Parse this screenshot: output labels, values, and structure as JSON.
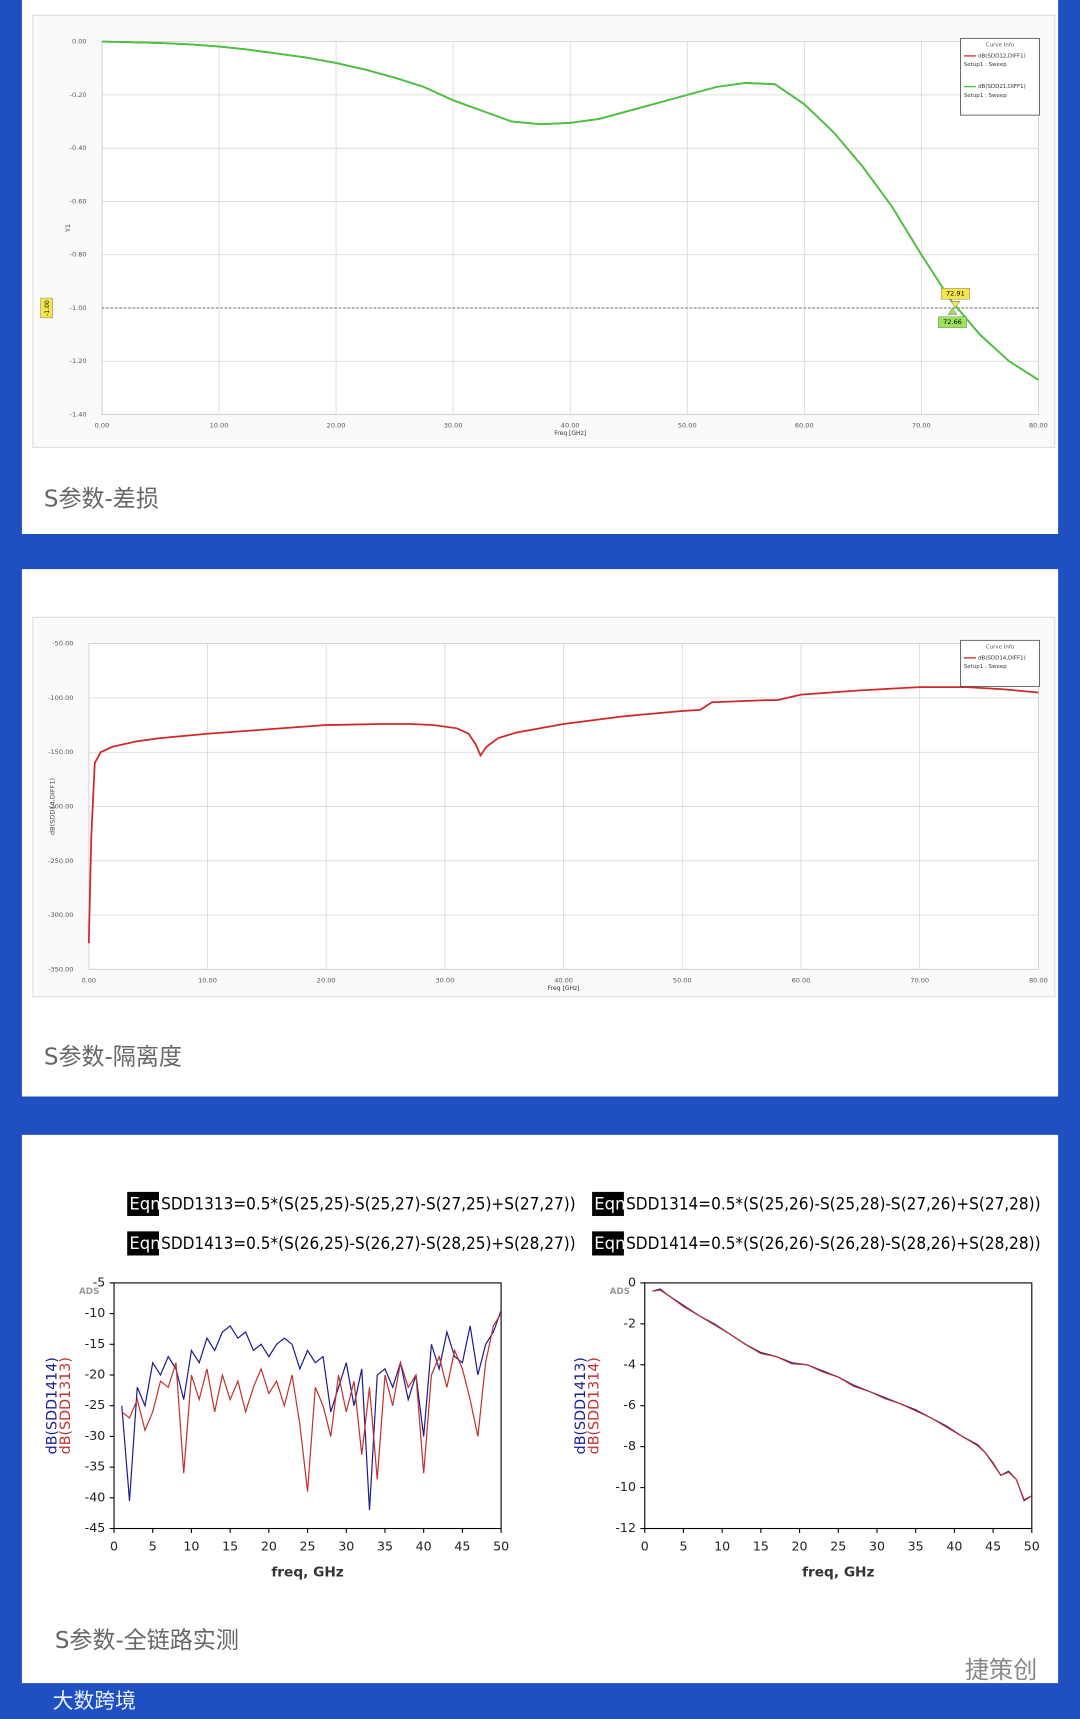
{
  "chart_data": [
    {
      "type": "line",
      "x_label": "Freq [GHz]",
      "y_label": "Y1",
      "legend_title": "Curve Info",
      "grid": true,
      "xlim": [
        0,
        80
      ],
      "ylim": [
        -1.4,
        0
      ],
      "xticks": [
        {
          "value": 0,
          "label": "0.00"
        },
        {
          "value": 10,
          "label": "10.00"
        },
        {
          "value": 20,
          "label": "20.00"
        },
        {
          "value": 30,
          "label": "30.00"
        },
        {
          "value": 40,
          "label": "40.00"
        },
        {
          "value": 50,
          "label": "50.00"
        },
        {
          "value": 60,
          "label": "60.00"
        },
        {
          "value": 70,
          "label": "70.00"
        },
        {
          "value": 80,
          "label": "80.00"
        }
      ],
      "yticks": [
        {
          "value": 0,
          "label": "0.00"
        },
        {
          "value": -0.2,
          "label": "-0.20"
        },
        {
          "value": -0.4,
          "label": "-0.40"
        },
        {
          "value": -0.6,
          "label": "-0.60"
        },
        {
          "value": -0.8,
          "label": "-0.80"
        },
        {
          "value": -1,
          "label": "-1.00"
        },
        {
          "value": -1.2,
          "label": "-1.20"
        },
        {
          "value": -1.4,
          "label": "-1.40"
        }
      ],
      "reference_line": {
        "value": -1,
        "label": "-1.00"
      },
      "markers": [
        72.91,
        72.66
      ],
      "x": [
        0,
        2.5,
        5,
        7.5,
        10,
        12.5,
        15,
        17.5,
        20,
        22.5,
        25,
        27.5,
        30,
        32.5,
        35,
        37.5,
        40,
        42.5,
        45,
        47.5,
        50,
        52.5,
        55,
        57.5,
        60,
        62.5,
        65,
        67.5,
        70,
        72.5,
        75,
        77.5,
        80
      ],
      "series": [
        {
          "name": "dB(SDD12,DIFF1)",
          "setup": "Setup1 : Sweep",
          "color": "#d03030",
          "values": [
            0,
            -0.002,
            -0.005,
            -0.01,
            -0.018,
            -0.03,
            -0.045,
            -0.06,
            -0.08,
            -0.105,
            -0.135,
            -0.17,
            -0.22,
            -0.26,
            -0.3,
            -0.31,
            -0.305,
            -0.29,
            -0.26,
            -0.23,
            -0.2,
            -0.17,
            -0.155,
            -0.16,
            -0.235,
            -0.34,
            -0.47,
            -0.62,
            -0.8,
            -0.97,
            -1.1,
            -1.2,
            -1.27
          ]
        },
        {
          "name": "dB(SDD21,DIFF1)",
          "setup": "Setup1 : Sweep",
          "color": "#3fc93f",
          "values": [
            0,
            -0.002,
            -0.005,
            -0.01,
            -0.018,
            -0.03,
            -0.045,
            -0.06,
            -0.08,
            -0.105,
            -0.135,
            -0.17,
            -0.22,
            -0.26,
            -0.3,
            -0.31,
            -0.305,
            -0.29,
            -0.26,
            -0.23,
            -0.2,
            -0.17,
            -0.155,
            -0.16,
            -0.235,
            -0.34,
            -0.47,
            -0.62,
            -0.8,
            -0.97,
            -1.1,
            -1.2,
            -1.27
          ]
        }
      ]
    },
    {
      "type": "line",
      "x_label": "Freq [GHz]",
      "y_label": "dB(SDD14,DIFF1)",
      "legend_title": "Curve Info",
      "grid": true,
      "xlim": [
        0,
        80
      ],
      "ylim": [
        -350,
        -50
      ],
      "xticks": [
        {
          "value": 0,
          "label": "0.00"
        },
        {
          "value": 10,
          "label": "10.00"
        },
        {
          "value": 20,
          "label": "20.00"
        },
        {
          "value": 30,
          "label": "30.00"
        },
        {
          "value": 40,
          "label": "40.00"
        },
        {
          "value": 50,
          "label": "50.00"
        },
        {
          "value": 60,
          "label": "60.00"
        },
        {
          "value": 70,
          "label": "70.00"
        },
        {
          "value": 80,
          "label": "80.00"
        }
      ],
      "yticks": [
        {
          "value": -50,
          "label": "-50.00"
        },
        {
          "value": -100,
          "label": "-100.00"
        },
        {
          "value": -150,
          "label": "-150.00"
        },
        {
          "value": -200,
          "label": "-200.00"
        },
        {
          "value": -250,
          "label": "-250.00"
        },
        {
          "value": -300,
          "label": "-300.00"
        },
        {
          "value": -350,
          "label": "-350.00"
        }
      ],
      "x": [
        0,
        0.2,
        0.5,
        1,
        2,
        4,
        6,
        10,
        15,
        20,
        25,
        27,
        29,
        31,
        32,
        32.6,
        33,
        33.5,
        34.5,
        36,
        40,
        45,
        50,
        51.5,
        52.5,
        55,
        57,
        58,
        60,
        65,
        70,
        74,
        77,
        80
      ],
      "series": [
        {
          "name": "dB(SDD14,DIFF1)",
          "setup": "Setup1 : Sweep",
          "color": "#d02828",
          "values": [
            -326,
            -230,
            -160,
            -150,
            -145,
            -140,
            -137,
            -133,
            -129,
            -125,
            -124,
            -124,
            -125,
            -128,
            -133,
            -143,
            -153,
            -145,
            -137,
            -132,
            -124,
            -117,
            -112,
            -111,
            -104,
            -103,
            -102,
            -102,
            -97,
            -93,
            -90,
            -90,
            -92,
            -95
          ]
        }
      ]
    },
    {
      "type": "line",
      "x_label": "freq, GHz",
      "watermark": "ADS",
      "grid": false,
      "xlim": [
        0,
        50
      ],
      "ylim": [
        -45,
        -5
      ],
      "xticks": [
        0,
        5,
        10,
        15,
        20,
        25,
        30,
        35,
        40,
        45,
        50
      ],
      "yticks": [
        -5,
        -10,
        -15,
        -20,
        -25,
        -30,
        -35,
        -40,
        -45
      ],
      "x": [
        1,
        2,
        3,
        4,
        5,
        6,
        7,
        8,
        9,
        10,
        11,
        12,
        13,
        14,
        15,
        16,
        17,
        18,
        19,
        20,
        21,
        22,
        23,
        24,
        25,
        26,
        27,
        28,
        29,
        30,
        31,
        32,
        33,
        34,
        35,
        36,
        37,
        38,
        39,
        40,
        41,
        42,
        43,
        44,
        45,
        46,
        47,
        48,
        49,
        50
      ],
      "series": [
        {
          "name": "dB(SDD1414)",
          "color": "#1c1c8e",
          "values": [
            -25,
            -40.5,
            -22,
            -25,
            -18,
            -20,
            -17,
            -19,
            -24,
            -16,
            -18,
            -14,
            -16,
            -13,
            -12,
            -14,
            -13,
            -16,
            -15,
            -17,
            -15,
            -14,
            -15,
            -19,
            -16,
            -18,
            -17,
            -26,
            -22,
            -18,
            -25,
            -19,
            -42,
            -20,
            -19,
            -22,
            -18,
            -24,
            -20,
            -30,
            -15,
            -19,
            -13,
            -17,
            -18,
            -12,
            -20,
            -15,
            -13,
            -9.5
          ]
        },
        {
          "name": "dB(SDD1313)",
          "color": "#c23030",
          "values": [
            -26,
            -27,
            -24,
            -29,
            -26,
            -21,
            -22,
            -18,
            -36,
            -20,
            -24,
            -19,
            -26,
            -20,
            -24,
            -21,
            -26,
            -22,
            -19,
            -23,
            -21,
            -25,
            -20,
            -28,
            -39,
            -22,
            -25,
            -30,
            -20,
            -26,
            -21,
            -33,
            -22,
            -37,
            -20,
            -25,
            -18,
            -22,
            -20,
            -36,
            -20,
            -17,
            -22,
            -16,
            -19,
            -24,
            -30,
            -18,
            -12,
            -10
          ]
        }
      ]
    },
    {
      "type": "line",
      "x_label": "freq, GHz",
      "watermark": "ADS",
      "grid": false,
      "xlim": [
        0,
        50
      ],
      "ylim": [
        -12,
        0
      ],
      "xticks": [
        0,
        5,
        10,
        15,
        20,
        25,
        30,
        35,
        40,
        45,
        50
      ],
      "yticks": [
        0,
        -2,
        -4,
        -6,
        -8,
        -10,
        -12
      ],
      "x": [
        1,
        2,
        3,
        5,
        7,
        9,
        11,
        13,
        15,
        17,
        19,
        21,
        23,
        25,
        27,
        29,
        31,
        33,
        35,
        37,
        39,
        41,
        43,
        44,
        45,
        46,
        47,
        48,
        49,
        50
      ],
      "series": [
        {
          "name": "dB(SDD1413)",
          "color": "#1c1c8e",
          "values": [
            -0.4,
            -0.3,
            -0.6,
            -1.1,
            -1.6,
            -2,
            -2.5,
            -3,
            -3.4,
            -3.6,
            -3.9,
            -4,
            -4.3,
            -4.6,
            -5,
            -5.3,
            -5.6,
            -5.9,
            -6.2,
            -6.6,
            -7,
            -7.5,
            -7.9,
            -8.3,
            -8.8,
            -9.4,
            -9.2,
            -9.6,
            -10.6,
            -10.4
          ]
        },
        {
          "name": "dB(SDD1314)",
          "color": "#c23030",
          "values": [
            -0.4,
            -0.35,
            -0.6,
            -1.15,
            -1.6,
            -2.05,
            -2.5,
            -3,
            -3.45,
            -3.6,
            -3.95,
            -4,
            -4.35,
            -4.6,
            -5.05,
            -5.3,
            -5.65,
            -5.9,
            -6.25,
            -6.6,
            -7.05,
            -7.5,
            -7.95,
            -8.3,
            -8.85,
            -9.4,
            -9.25,
            -9.6,
            -10.65,
            -10.4
          ]
        }
      ]
    }
  ],
  "captions": [
    "S参数-差损",
    "S参数-隔离度",
    "S参数-全链路实测"
  ],
  "equation_badge": "Eqn",
  "equations": [
    "SDD1313=0.5*(S(25,25)-S(25,27)-S(27,25)+S(27,27))",
    "SDD1314=0.5*(S(25,26)-S(25,28)-S(27,26)+S(27,28))",
    "SDD1413=0.5*(S(26,25)-S(26,27)-S(28,25)+S(28,27))",
    "SDD1414=0.5*(S(26,26)-S(26,28)-S(28,26)+S(28,28))"
  ],
  "watermarks": [
    "大数跨境",
    "捷策创"
  ]
}
